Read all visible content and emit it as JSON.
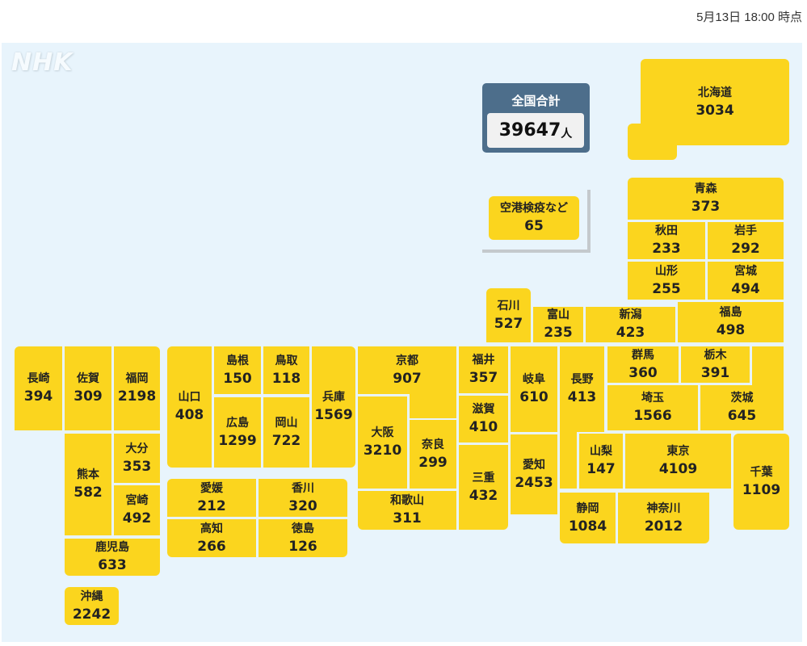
{
  "timestamp": "5月13日 18:00 時点",
  "logo": "NHK",
  "total": {
    "label": "全国合計",
    "value": "39647",
    "unit": "人"
  },
  "airport": {
    "name": "空港検疫など",
    "count": "65"
  },
  "colors": {
    "tile": "#fbd51e",
    "background": "#e8f4fc",
    "total_box": "#4d6e8b"
  },
  "prefectures": [
    {
      "name": "北海道",
      "count": "3034"
    },
    {
      "name": "青森",
      "count": "373"
    },
    {
      "name": "秋田",
      "count": "233"
    },
    {
      "name": "岩手",
      "count": "292"
    },
    {
      "name": "山形",
      "count": "255"
    },
    {
      "name": "宮城",
      "count": "494"
    },
    {
      "name": "石川",
      "count": "527"
    },
    {
      "name": "富山",
      "count": "235"
    },
    {
      "name": "新潟",
      "count": "423"
    },
    {
      "name": "福島",
      "count": "498"
    },
    {
      "name": "長崎",
      "count": "394"
    },
    {
      "name": "佐賀",
      "count": "309"
    },
    {
      "name": "福岡",
      "count": "2198"
    },
    {
      "name": "熊本",
      "count": "582"
    },
    {
      "name": "大分",
      "count": "353"
    },
    {
      "name": "宮崎",
      "count": "492"
    },
    {
      "name": "鹿児島",
      "count": "633"
    },
    {
      "name": "沖縄",
      "count": "2242"
    },
    {
      "name": "山口",
      "count": "408"
    },
    {
      "name": "島根",
      "count": "150"
    },
    {
      "name": "鳥取",
      "count": "118"
    },
    {
      "name": "広島",
      "count": "1299"
    },
    {
      "name": "岡山",
      "count": "722"
    },
    {
      "name": "兵庫",
      "count": "1569"
    },
    {
      "name": "愛媛",
      "count": "212"
    },
    {
      "name": "香川",
      "count": "320"
    },
    {
      "name": "高知",
      "count": "266"
    },
    {
      "name": "徳島",
      "count": "126"
    },
    {
      "name": "京都",
      "count": "907"
    },
    {
      "name": "大阪",
      "count": "3210"
    },
    {
      "name": "奈良",
      "count": "299"
    },
    {
      "name": "和歌山",
      "count": "311"
    },
    {
      "name": "福井",
      "count": "357"
    },
    {
      "name": "滋賀",
      "count": "410"
    },
    {
      "name": "三重",
      "count": "432"
    },
    {
      "name": "岐阜",
      "count": "610"
    },
    {
      "name": "愛知",
      "count": "2453"
    },
    {
      "name": "長野",
      "count": "413"
    },
    {
      "name": "山梨",
      "count": "147"
    },
    {
      "name": "東京",
      "count": "4109"
    },
    {
      "name": "千葉",
      "count": "1109"
    },
    {
      "name": "静岡",
      "count": "1084"
    },
    {
      "name": "神奈川",
      "count": "2012"
    },
    {
      "name": "群馬",
      "count": "360"
    },
    {
      "name": "栃木",
      "count": "391"
    },
    {
      "name": "埼玉",
      "count": "1566"
    },
    {
      "name": "茨城",
      "count": "645"
    }
  ]
}
